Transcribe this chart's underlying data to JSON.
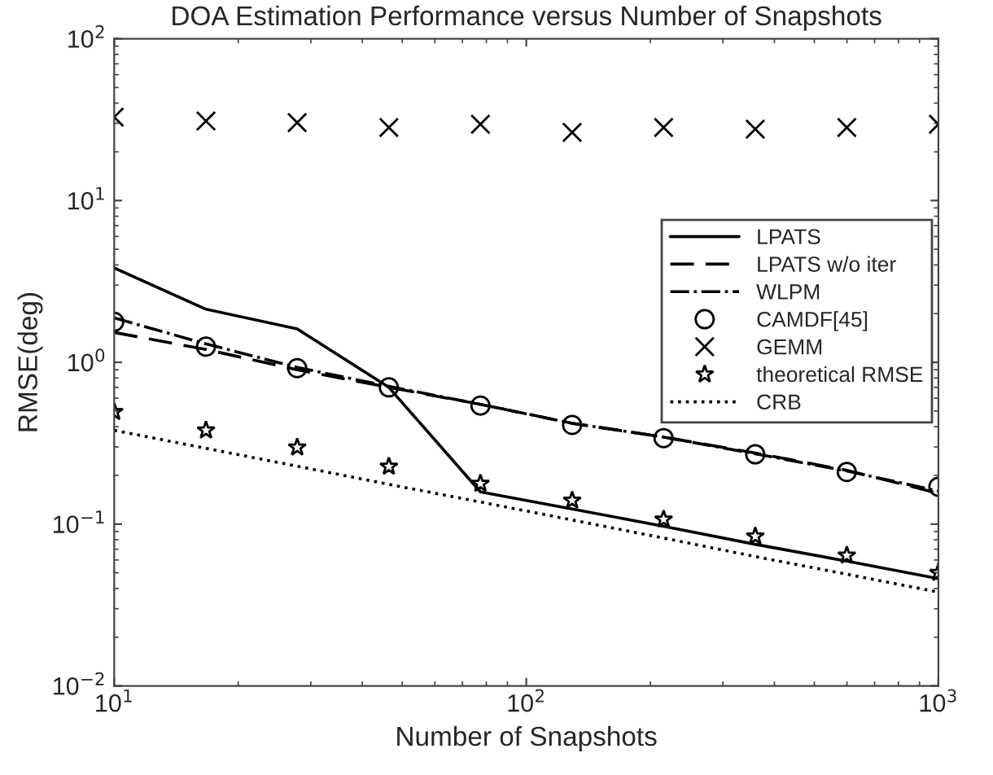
{
  "chart_data": {
    "type": "line",
    "title": "DOA Estimation Performance versus Number of Snapshots",
    "xlabel": "Number of Snapshots",
    "ylabel": "RMSE(deg)",
    "log": "xy",
    "x": [
      10,
      16.7,
      27.8,
      46.4,
      77.4,
      129.2,
      215.4,
      359.4,
      599.5,
      1000
    ],
    "xlim": [
      10,
      1000
    ],
    "xticks": [
      {
        "value": 10,
        "label": "10$^{1}$"
      },
      {
        "value": 100,
        "label": "10$^{2}$"
      },
      {
        "value": 1000,
        "label": "10$^{3}$"
      }
    ],
    "ylim": [
      0.01,
      100
    ],
    "yticks": [
      {
        "value": 0.01,
        "label": "10$^{−2}$"
      },
      {
        "value": 0.1,
        "label": "10$^{−1}$"
      },
      {
        "value": 1,
        "label": "10$^{0}$"
      },
      {
        "value": 10,
        "label": "10$^{1}$"
      },
      {
        "value": 100,
        "label": "10$^{2}$"
      }
    ],
    "grid": false,
    "legend": "top right",
    "series": [
      {
        "name": "LPATS",
        "color": "#000000",
        "line_style": "solid",
        "marker": "none",
        "values": [
          3.83,
          2.13,
          1.61,
          0.7,
          0.158,
          0.124,
          0.097,
          0.075,
          0.059,
          0.046
        ]
      },
      {
        "name": "LPATS w/o iter",
        "color": "#000000",
        "line_style": "dashed",
        "marker": "none",
        "values": [
          1.53,
          1.2,
          0.9,
          0.7,
          0.55,
          0.42,
          0.345,
          0.275,
          0.215,
          0.155
        ]
      },
      {
        "name": "WLPM",
        "color": "#000000",
        "line_style": "dashdot",
        "marker": "none",
        "values": [
          1.88,
          1.3,
          0.93,
          0.71,
          0.55,
          0.42,
          0.345,
          0.272,
          0.213,
          0.16
        ]
      },
      {
        "name": "CAMDF[45]",
        "type": "scatter",
        "color": "#000000",
        "marker": "circle",
        "values": [
          1.78,
          1.25,
          0.92,
          0.7,
          0.54,
          0.41,
          0.34,
          0.27,
          0.21,
          0.17
        ]
      },
      {
        "name": "GEMM",
        "type": "scatter",
        "color": "#000000",
        "marker": "cross",
        "values": [
          32.8,
          31,
          30.3,
          28.3,
          29.6,
          26.4,
          28.3,
          27.6,
          28.3,
          29.6
        ]
      },
      {
        "name": "theoretical RMSE",
        "type": "scatter",
        "color": "#000000",
        "marker": "star",
        "values": [
          0.494,
          0.38,
          0.298,
          0.227,
          0.178,
          0.14,
          0.107,
          0.084,
          0.064,
          0.05
        ]
      },
      {
        "name": "CRB",
        "color": "#000000",
        "line_style": "dotted",
        "marker": "none",
        "values": [
          0.38,
          0.294,
          0.228,
          0.176,
          0.137,
          0.106,
          0.082,
          0.063,
          0.049,
          0.038
        ]
      }
    ]
  }
}
